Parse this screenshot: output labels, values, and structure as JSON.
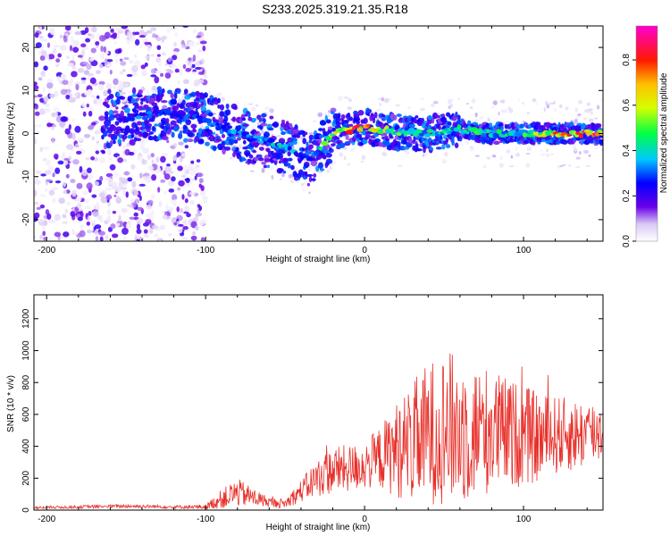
{
  "title": "S233.2025.319.21.35.R18",
  "chart_data": [
    {
      "type": "heatmap",
      "name": "spectrogram",
      "xlabel": "Height of straight line (km)",
      "ylabel": "Frequency (Hz)",
      "xlim": [
        -208,
        150
      ],
      "ylim": [
        -25,
        25
      ],
      "xticks": [
        -200,
        -100,
        0,
        100
      ],
      "xtick_labels": [
        "-200",
        "-100",
        "0",
        "100"
      ],
      "yticks": [
        -20,
        -10,
        0,
        10,
        20
      ],
      "ytick_labels": [
        "-20",
        "-10",
        "0",
        "10",
        "20"
      ],
      "ridge": {
        "x": [
          -160,
          -140,
          -120,
          -100,
          -80,
          -60,
          -45,
          -35,
          -20,
          0,
          20,
          40,
          60,
          80,
          100,
          120,
          150
        ],
        "freq": [
          3,
          4,
          5,
          3,
          0,
          -2,
          -4,
          -6,
          0,
          1.5,
          0.5,
          0,
          1,
          0,
          0,
          0,
          0
        ],
        "peak_amplitude": [
          0.3,
          0.35,
          0.3,
          0.35,
          0.4,
          0.45,
          0.4,
          0.3,
          0.75,
          0.9,
          0.55,
          0.45,
          0.5,
          0.5,
          0.55,
          0.85,
          0.95
        ]
      },
      "colorbar": {
        "label": "Normalized spectral amplitude",
        "range": [
          0,
          0.95
        ],
        "ticks": [
          0,
          0.2,
          0.4,
          0.6,
          0.8
        ],
        "tick_labels": [
          "0.0",
          "0.2",
          "0.4",
          "0.6",
          "0.8"
        ]
      }
    },
    {
      "type": "line",
      "name": "snr",
      "xlabel": "Height of straight line (km)",
      "ylabel": "SNR (10 * v/v)",
      "xlim": [
        -208,
        150
      ],
      "ylim": [
        0,
        1350
      ],
      "xticks": [
        -200,
        -100,
        0,
        100
      ],
      "xtick_labels": [
        "-200",
        "-100",
        "0",
        "100"
      ],
      "yticks": [
        0,
        200,
        400,
        600,
        800,
        1000,
        1200
      ],
      "ytick_labels": [
        "0",
        "200",
        "400",
        "600",
        "800",
        "1000",
        "1200"
      ],
      "color": "#e8302a",
      "envelope": {
        "x": [
          -208,
          -180,
          -150,
          -120,
          -100,
          -90,
          -80,
          -70,
          -60,
          -50,
          -40,
          -30,
          -20,
          -10,
          0,
          10,
          20,
          30,
          40,
          50,
          60,
          70,
          80,
          90,
          100,
          110,
          120,
          130,
          140,
          150
        ],
        "mean": [
          15,
          20,
          25,
          20,
          20,
          70,
          110,
          80,
          50,
          40,
          120,
          200,
          250,
          260,
          280,
          330,
          380,
          420,
          480,
          520,
          500,
          500,
          500,
          480,
          470,
          450,
          470,
          470,
          480,
          500
        ],
        "amp": [
          8,
          10,
          12,
          10,
          15,
          60,
          90,
          60,
          30,
          30,
          70,
          120,
          150,
          150,
          150,
          200,
          300,
          380,
          450,
          480,
          480,
          420,
          400,
          350,
          320,
          280,
          250,
          230,
          220,
          200
        ]
      }
    }
  ]
}
